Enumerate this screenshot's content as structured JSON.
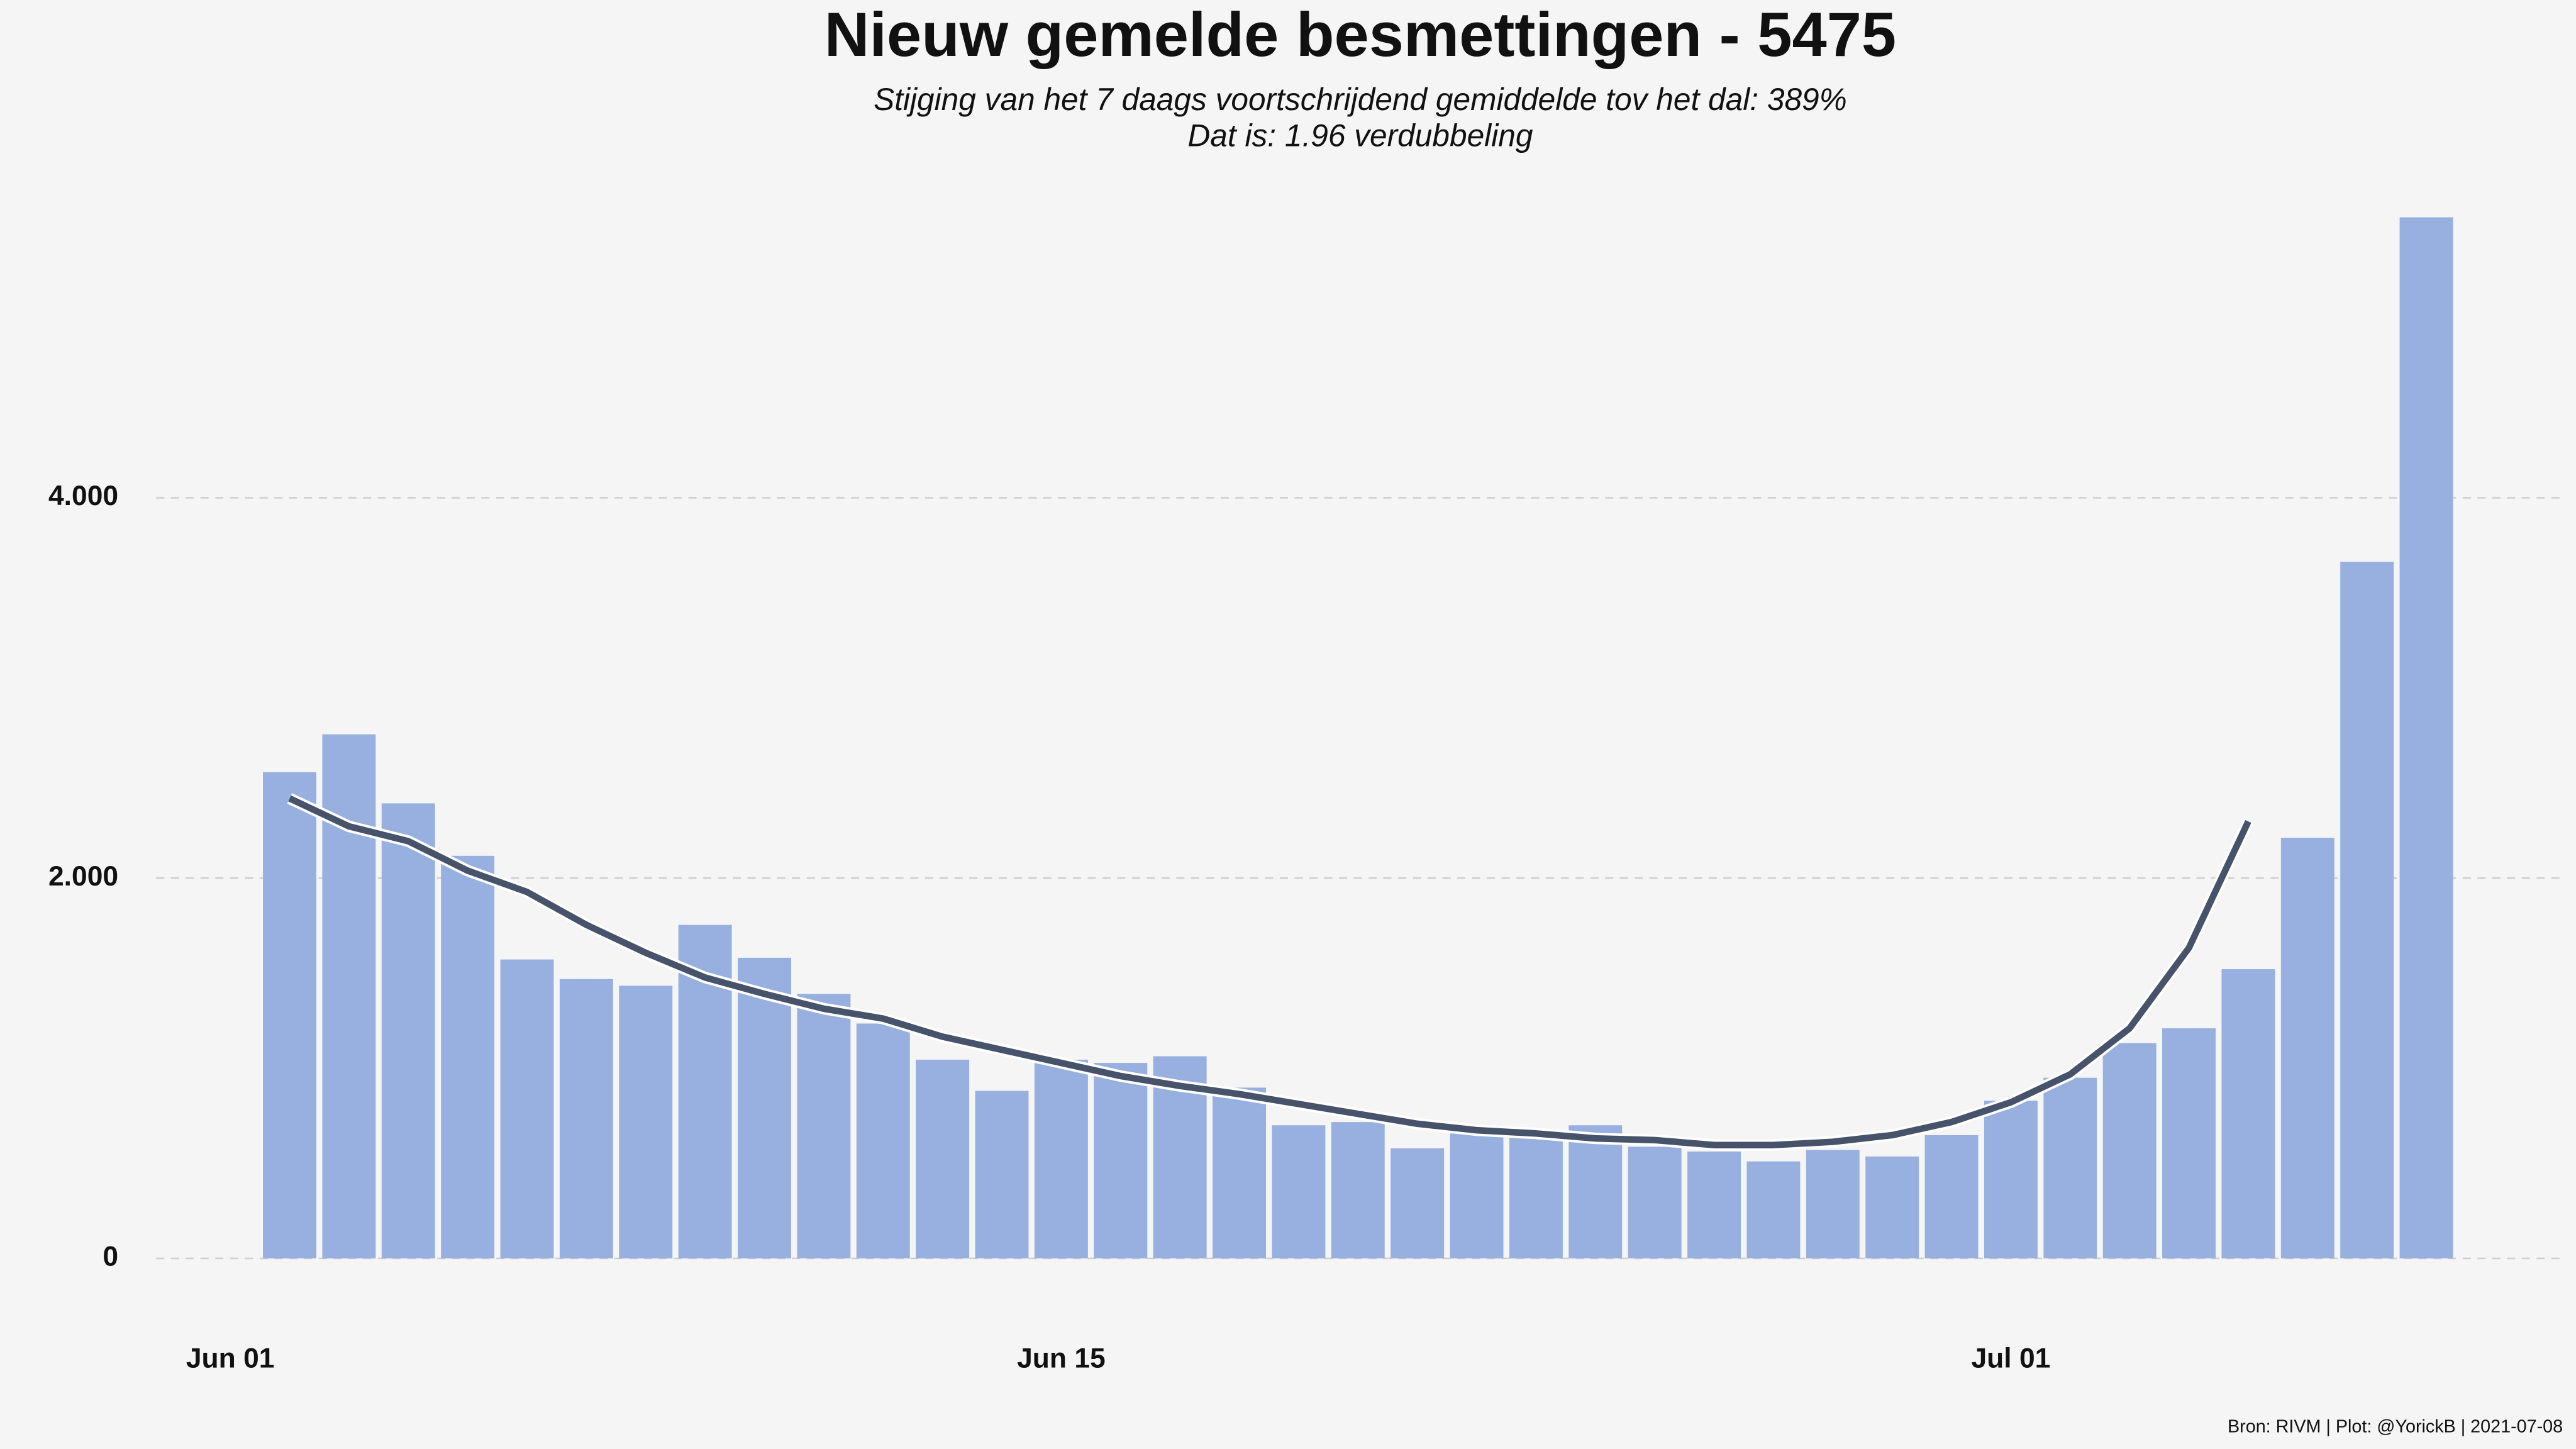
{
  "chart_data": {
    "type": "bar",
    "title": "Nieuw gemelde besmettingen  -   5475",
    "subtitle": [
      "Stijging van het 7 daags voortschrijdend gemiddelde tov het dal: 389%",
      "Dat is: 1.96 verdubbeling"
    ],
    "caption": "Bron: RIVM | Plot: @YorickB |  2021-07-08",
    "x": [
      2,
      3,
      4,
      5,
      6,
      7,
      8,
      9,
      10,
      11,
      12,
      13,
      14,
      15,
      16,
      17,
      18,
      19,
      20,
      21,
      22,
      23,
      24,
      25,
      26,
      27,
      28,
      29,
      30,
      31,
      32,
      33,
      34,
      35,
      36,
      37,
      38
    ],
    "xlim": [
      -0.25,
      40.3
    ],
    "xticks": [
      {
        "value": 1,
        "label": "Jun 01"
      },
      {
        "value": 15,
        "label": "Jun 15"
      },
      {
        "value": 31,
        "label": "Jul 01"
      }
    ],
    "ylim": [
      -300,
      5600
    ],
    "yticks": [
      0,
      {
        "value": 2000,
        "label": "2.000"
      },
      {
        "value": 4000,
        "label": "4.000"
      }
    ],
    "grid": true,
    "series": [
      {
        "type": "bar",
        "color": "#98b0df",
        "values": [
          2557,
          2756,
          2393,
          2117,
          1572,
          1469,
          1434,
          1754,
          1581,
          1391,
          1235,
          1045,
          881,
          1045,
          1028,
          1063,
          898,
          700,
          717,
          579,
          657,
          639,
          700,
          587,
          562,
          510,
          570,
          536,
          648,
          829,
          950,
          1132,
          1210,
          1521,
          2212,
          3663,
          5475
        ]
      },
      {
        "type": "line",
        "color": "#46536b",
        "values": [
          2419,
          2272,
          2194,
          2039,
          1927,
          1754,
          1607,
          1477,
          1391,
          1313,
          1261,
          1166,
          1097,
          1028,
          959,
          907,
          864,
          812,
          760,
          708,
          674,
          657,
          631,
          622,
          596,
          596,
          613,
          648,
          717,
          821,
          968,
          1210,
          1633,
          2298,
          null,
          null,
          null
        ]
      }
    ]
  }
}
